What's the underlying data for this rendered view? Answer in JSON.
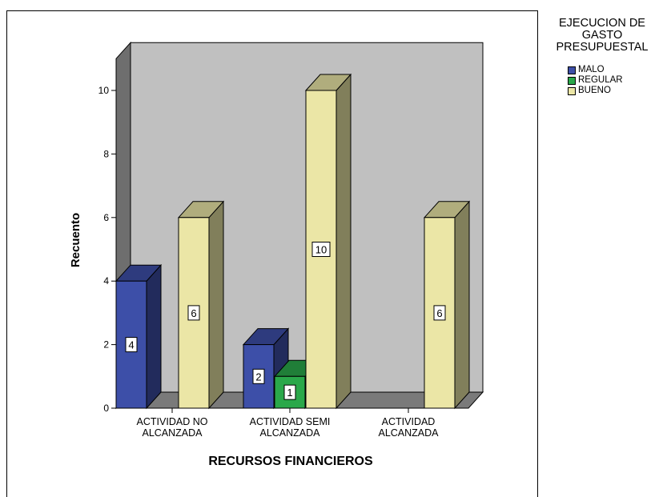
{
  "chart_data": {
    "type": "bar",
    "style": "3d clustered",
    "categories": [
      "ACTIVIDAD NO\nALCANZADA",
      "ACTIVIDAD SEMI\nALCANZADA",
      "ACTIVIDAD\nALCANZADA"
    ],
    "series": [
      {
        "name": "MALO",
        "color": "#3d4fa8",
        "values": [
          4,
          2,
          null
        ]
      },
      {
        "name": "REGULAR",
        "color": "#2aa84a",
        "values": [
          null,
          1,
          null
        ]
      },
      {
        "name": "BUENO",
        "color": "#ebe6a6",
        "values": [
          6,
          10,
          6
        ]
      }
    ],
    "xlabel": "RECURSOS FINANCIEROS",
    "ylabel": "Recuento",
    "ylim": [
      0,
      11
    ],
    "yticks": [
      0,
      2,
      4,
      6,
      8,
      10
    ],
    "legend_title": "EJECUCION DE\nGASTO\nPRESUPUESTAL",
    "legend_position": "top-right",
    "grid": false,
    "data_labels": true
  }
}
